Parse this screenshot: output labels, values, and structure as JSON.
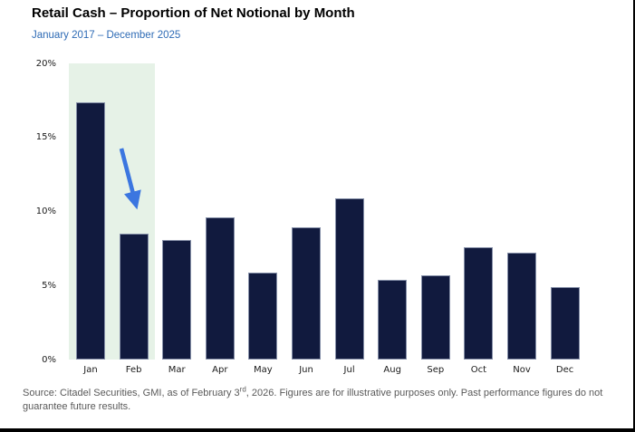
{
  "header": {
    "title": "Retail Cash – Proportion of Net Notional by Month",
    "subtitle": "January 2017 – December 2025",
    "subtitle_color": "#2E6BB5"
  },
  "chart_data": {
    "type": "bar",
    "title": "Retail Cash – Proportion of Net Notional by Month",
    "subtitle": "January 2017 – December 2025",
    "categories": [
      "Jan",
      "Feb",
      "Mar",
      "Apr",
      "May",
      "Jun",
      "Jul",
      "Aug",
      "Sep",
      "Oct",
      "Nov",
      "Dec"
    ],
    "values": [
      17.4,
      8.5,
      8.1,
      9.6,
      5.9,
      8.9,
      10.9,
      5.4,
      5.7,
      7.6,
      7.2,
      4.9
    ],
    "unit": "%",
    "xlabel": "",
    "ylabel": "",
    "ylim": [
      0,
      20
    ],
    "yticks": [
      0,
      5,
      10,
      15,
      20
    ],
    "ytick_labels": [
      "0%",
      "5%",
      "10%",
      "15%",
      "20%"
    ],
    "grid": false,
    "legend": "none",
    "bar_color": "#111A3E",
    "highlight": {
      "categories": [
        "Jan",
        "Feb"
      ],
      "color": "#E6F2E7",
      "meaning": "highlighted Jan–Feb band"
    },
    "annotation": {
      "type": "arrow",
      "color": "#3B76E0",
      "points_to": "Feb",
      "direction": "down-right"
    }
  },
  "source": {
    "prefix": "Source: Citadel Securities, GMI, as of February 3",
    "superscript": "rd",
    "suffix": ", 2026. Figures are for illustrative purposes only. Past performance figures do not guarantee future results."
  }
}
